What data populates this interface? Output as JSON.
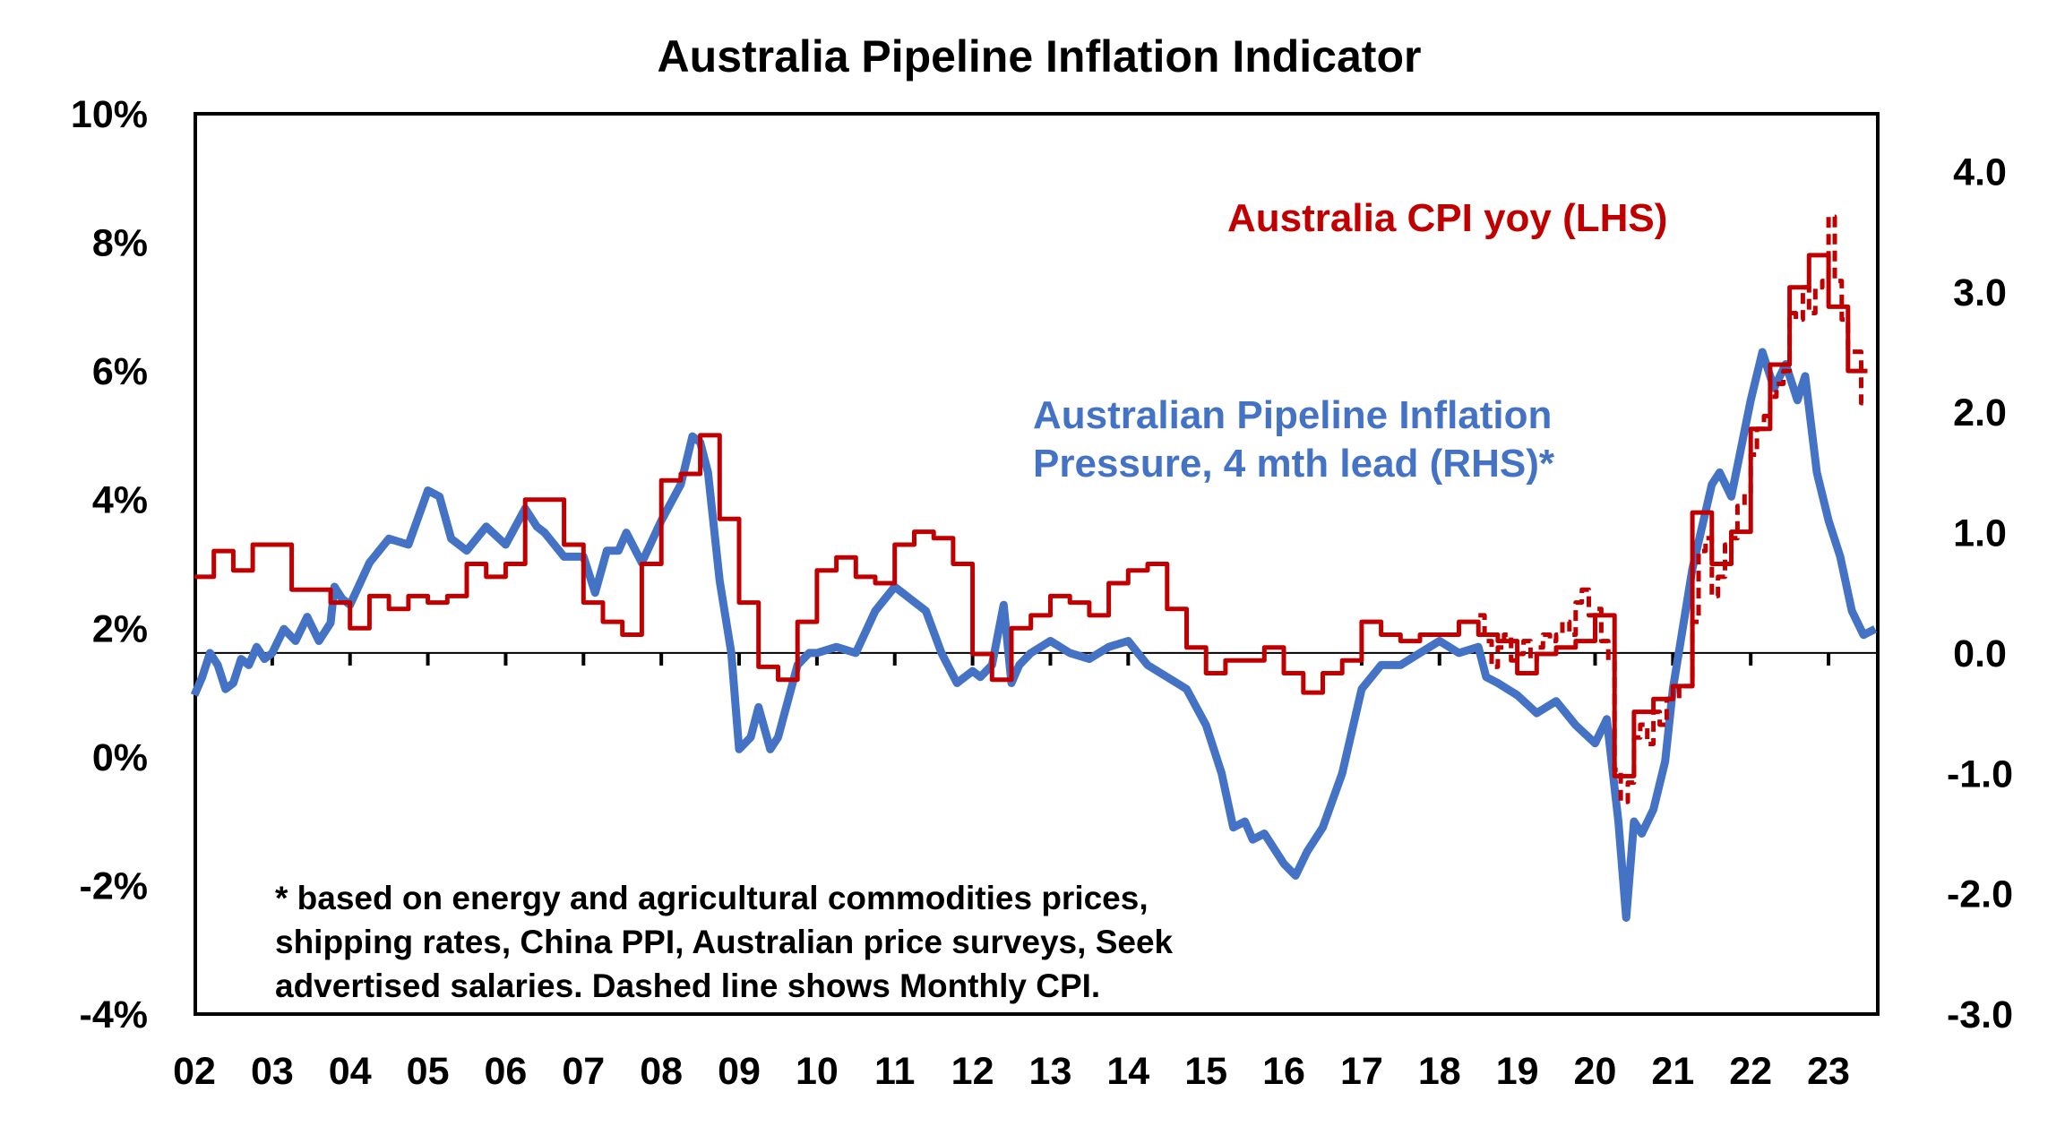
{
  "chart_data": {
    "type": "line",
    "title": "Australia Pipeline Inflation Indicator",
    "xlabel": "",
    "ylabel_left": "",
    "ylabel_right": "",
    "x_tick_labels": [
      "02",
      "03",
      "04",
      "05",
      "06",
      "07",
      "08",
      "09",
      "10",
      "11",
      "12",
      "13",
      "14",
      "15",
      "16",
      "17",
      "18",
      "19",
      "20",
      "21",
      "22",
      "23"
    ],
    "x_range": [
      2002.0,
      2023.63
    ],
    "y_left": {
      "range": [
        -4,
        10
      ],
      "tick_labels": [
        "10%",
        "8%",
        "6%",
        "4%",
        "2%",
        "0%",
        "-2%",
        "-4%"
      ],
      "tick_values": [
        10,
        8,
        6,
        4,
        2,
        0,
        -2,
        -4
      ]
    },
    "y_right": {
      "range": [
        -3.0,
        4.48
      ],
      "tick_labels": [
        "4.0",
        "3.0",
        "2.0",
        "1.0",
        "0.0",
        "-1.0",
        "-2.0",
        "-3.0"
      ],
      "tick_values": [
        4,
        3,
        2,
        1,
        0,
        -1,
        -2,
        -3
      ]
    },
    "grid": false,
    "zero_line_axis": "right",
    "annotations": {
      "cpi_label": "Australia CPI yoy (LHS)",
      "pipeline_label_line1": "Australian Pipeline Inflation",
      "pipeline_label_line2": "Pressure, 4 mth lead (RHS)*",
      "footnote_line1": "* based on energy and agricultural commodities prices,",
      "footnote_line2": "shipping rates, China PPI, Australian price surveys, Seek",
      "footnote_line3": "advertised salaries. Dashed line shows Monthly CPI."
    },
    "series": [
      {
        "name": "Australia CPI yoy (LHS)",
        "axis": "left",
        "style": "step",
        "color": "#C00000",
        "x": [
          2002.0,
          2002.25,
          2002.5,
          2002.75,
          2003.0,
          2003.25,
          2003.5,
          2003.75,
          2004.0,
          2004.25,
          2004.5,
          2004.75,
          2005.0,
          2005.25,
          2005.5,
          2005.75,
          2006.0,
          2006.25,
          2006.5,
          2006.75,
          2007.0,
          2007.25,
          2007.5,
          2007.75,
          2008.0,
          2008.25,
          2008.5,
          2008.75,
          2009.0,
          2009.25,
          2009.5,
          2009.75,
          2010.0,
          2010.25,
          2010.5,
          2010.75,
          2011.0,
          2011.25,
          2011.5,
          2011.75,
          2012.0,
          2012.25,
          2012.5,
          2012.75,
          2013.0,
          2013.25,
          2013.5,
          2013.75,
          2014.0,
          2014.25,
          2014.5,
          2014.75,
          2015.0,
          2015.25,
          2015.5,
          2015.75,
          2016.0,
          2016.25,
          2016.5,
          2016.75,
          2017.0,
          2017.25,
          2017.5,
          2017.75,
          2018.0,
          2018.25,
          2018.5,
          2018.75,
          2019.0,
          2019.25,
          2019.5,
          2019.75,
          2020.0,
          2020.25,
          2020.5,
          2020.75,
          2021.0,
          2021.25,
          2021.5,
          2021.75,
          2022.0,
          2022.25,
          2022.5,
          2022.75,
          2023.0,
          2023.25
        ],
        "values": [
          2.8,
          3.2,
          2.9,
          3.3,
          3.3,
          2.6,
          2.6,
          2.4,
          2.0,
          2.5,
          2.3,
          2.5,
          2.4,
          2.5,
          3.0,
          2.8,
          3.0,
          4.0,
          4.0,
          3.3,
          2.4,
          2.1,
          1.9,
          3.0,
          4.3,
          4.4,
          5.0,
          3.7,
          2.4,
          1.4,
          1.2,
          2.1,
          2.9,
          3.1,
          2.8,
          2.7,
          3.3,
          3.5,
          3.4,
          3.0,
          1.6,
          1.2,
          2.0,
          2.2,
          2.5,
          2.4,
          2.2,
          2.7,
          2.9,
          3.0,
          2.3,
          1.7,
          1.3,
          1.5,
          1.5,
          1.7,
          1.3,
          1.0,
          1.3,
          1.5,
          2.1,
          1.9,
          1.8,
          1.9,
          1.9,
          2.1,
          1.9,
          1.8,
          1.3,
          1.6,
          1.7,
          1.8,
          2.2,
          -0.3,
          0.7,
          0.9,
          1.1,
          3.8,
          3.0,
          3.5,
          5.1,
          6.1,
          7.3,
          7.8,
          7.0,
          6.0
        ],
        "end_x": 2023.5
      },
      {
        "name": "Monthly CPI (LHS, dashed)",
        "axis": "left",
        "style": "dashed",
        "color": "#C00000",
        "x": [
          2018.5,
          2018.58,
          2018.67,
          2018.75,
          2018.83,
          2018.92,
          2019.0,
          2019.08,
          2019.17,
          2019.25,
          2019.33,
          2019.42,
          2019.5,
          2019.58,
          2019.67,
          2019.75,
          2019.83,
          2019.92,
          2020.0,
          2020.08,
          2020.17,
          2020.25,
          2020.33,
          2020.42,
          2020.5,
          2020.58,
          2020.67,
          2020.75,
          2020.83,
          2020.92,
          2021.0,
          2021.08,
          2021.17,
          2021.25,
          2021.33,
          2021.42,
          2021.5,
          2021.58,
          2021.67,
          2021.75,
          2021.83,
          2021.92,
          2022.0,
          2022.08,
          2022.17,
          2022.25,
          2022.33,
          2022.42,
          2022.5,
          2022.58,
          2022.67,
          2022.75,
          2022.83,
          2022.92,
          2023.0,
          2023.08,
          2023.17,
          2023.25,
          2023.33,
          2023.42
        ],
        "values": [
          2.2,
          1.8,
          1.4,
          1.7,
          1.9,
          1.5,
          1.6,
          1.8,
          1.5,
          1.7,
          1.9,
          1.8,
          1.9,
          2.1,
          1.9,
          2.4,
          2.6,
          2.2,
          2.3,
          1.8,
          1.5,
          -0.2,
          -0.7,
          -0.4,
          0.3,
          0.5,
          0.2,
          0.7,
          0.5,
          0.9,
          0.9,
          1.1,
          1.1,
          2.1,
          3.2,
          3.4,
          2.5,
          2.8,
          3.3,
          3.4,
          3.9,
          4.1,
          4.7,
          5.1,
          5.3,
          5.6,
          5.8,
          6.0,
          6.9,
          6.8,
          7.3,
          6.9,
          7.3,
          7.4,
          8.4,
          7.4,
          6.8,
          6.3,
          6.3,
          5.5
        ],
        "end_x": 2023.5
      },
      {
        "name": "Australian Pipeline Inflation Pressure, 4 mth lead (RHS)*",
        "axis": "right",
        "style": "solid",
        "color": "#4472C4",
        "x": [
          2002.0,
          2002.1,
          2002.2,
          2002.3,
          2002.4,
          2002.5,
          2002.6,
          2002.7,
          2002.8,
          2002.9,
          2003.0,
          2003.15,
          2003.3,
          2003.45,
          2003.6,
          2003.75,
          2003.8,
          2003.9,
          2004.0,
          2004.25,
          2004.5,
          2004.75,
          2005.0,
          2005.15,
          2005.3,
          2005.5,
          2005.75,
          2006.0,
          2006.25,
          2006.4,
          2006.5,
          2006.75,
          2007.0,
          2007.15,
          2007.3,
          2007.45,
          2007.55,
          2007.75,
          2008.0,
          2008.25,
          2008.4,
          2008.5,
          2008.6,
          2008.75,
          2008.9,
          2009.0,
          2009.15,
          2009.25,
          2009.4,
          2009.5,
          2009.75,
          2009.9,
          2010.0,
          2010.25,
          2010.5,
          2010.75,
          2011.0,
          2011.2,
          2011.4,
          2011.6,
          2011.8,
          2012.0,
          2012.1,
          2012.25,
          2012.4,
          2012.5,
          2012.6,
          2012.75,
          2013.0,
          2013.25,
          2013.5,
          2013.75,
          2014.0,
          2014.25,
          2014.5,
          2014.75,
          2015.0,
          2015.2,
          2015.35,
          2015.5,
          2015.6,
          2015.75,
          2016.0,
          2016.15,
          2016.3,
          2016.5,
          2016.75,
          2017.0,
          2017.25,
          2017.5,
          2017.75,
          2018.0,
          2018.25,
          2018.5,
          2018.6,
          2018.75,
          2019.0,
          2019.25,
          2019.5,
          2019.75,
          2020.0,
          2020.15,
          2020.3,
          2020.4,
          2020.5,
          2020.6,
          2020.75,
          2020.9,
          2021.0,
          2021.25,
          2021.5,
          2021.6,
          2021.75,
          2022.0,
          2022.15,
          2022.3,
          2022.45,
          2022.6,
          2022.7,
          2022.85,
          2023.0,
          2023.15,
          2023.3,
          2023.45,
          2023.6
        ],
        "values": [
          -0.35,
          -0.2,
          0.0,
          -0.1,
          -0.3,
          -0.25,
          -0.05,
          -0.1,
          0.05,
          -0.05,
          0.0,
          0.2,
          0.1,
          0.3,
          0.1,
          0.25,
          0.55,
          0.45,
          0.4,
          0.75,
          0.95,
          0.9,
          1.35,
          1.3,
          0.95,
          0.85,
          1.05,
          0.9,
          1.2,
          1.05,
          1.0,
          0.8,
          0.8,
          0.5,
          0.85,
          0.85,
          1.0,
          0.75,
          1.1,
          1.4,
          1.8,
          1.75,
          1.5,
          0.6,
          0.0,
          -0.8,
          -0.7,
          -0.45,
          -0.8,
          -0.7,
          -0.1,
          0.0,
          0.0,
          0.05,
          0.0,
          0.35,
          0.55,
          0.45,
          0.35,
          0.0,
          -0.25,
          -0.15,
          -0.2,
          -0.1,
          0.4,
          -0.25,
          -0.1,
          0.0,
          0.1,
          0.0,
          -0.05,
          0.05,
          0.1,
          -0.1,
          -0.2,
          -0.3,
          -0.6,
          -1.0,
          -1.45,
          -1.4,
          -1.55,
          -1.5,
          -1.75,
          -1.85,
          -1.65,
          -1.45,
          -1.0,
          -0.3,
          -0.1,
          -0.1,
          0.0,
          0.1,
          0.0,
          0.05,
          -0.2,
          -0.25,
          -0.35,
          -0.5,
          -0.4,
          -0.6,
          -0.75,
          -0.55,
          -1.4,
          -2.2,
          -1.4,
          -1.5,
          -1.3,
          -0.9,
          -0.3,
          0.7,
          1.4,
          1.5,
          1.3,
          2.1,
          2.5,
          2.2,
          2.4,
          2.1,
          2.3,
          1.5,
          1.1,
          0.8,
          0.35,
          0.15,
          0.2
        ]
      }
    ]
  }
}
